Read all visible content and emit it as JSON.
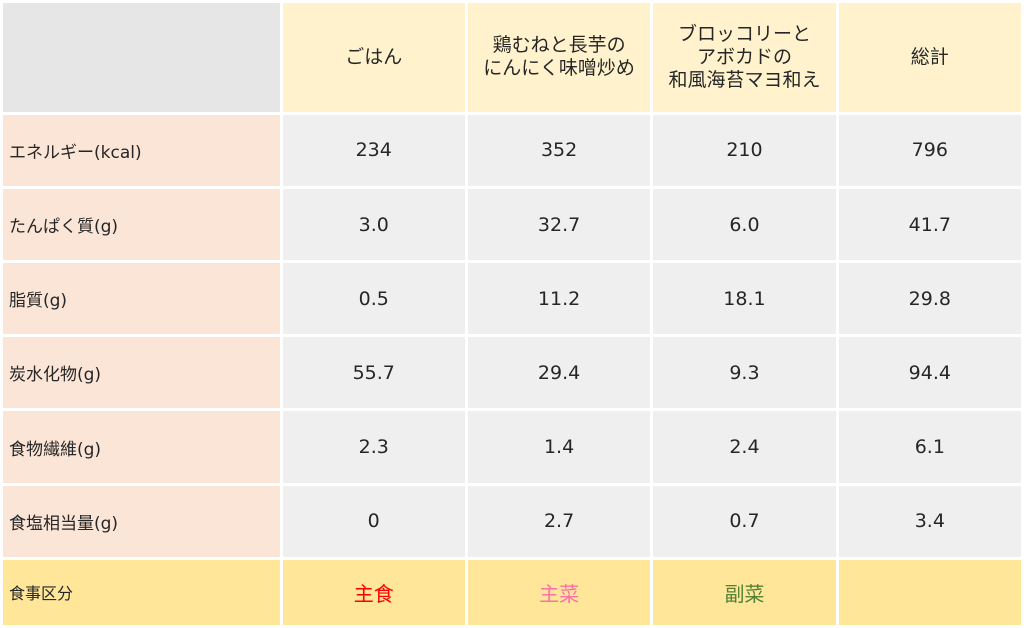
{
  "table": {
    "columns": [
      {
        "lines": [
          "ごはん"
        ]
      },
      {
        "lines": [
          "鶏むねと長芋の",
          "にんにく味噌炒め"
        ]
      },
      {
        "lines": [
          "ブロッコリーと",
          "アボカドの",
          "和風海苔マヨ和え"
        ]
      },
      {
        "lines": [
          "総計"
        ]
      }
    ],
    "rows": [
      {
        "label": "エネルギー(kcal)",
        "values": [
          "234",
          "352",
          "210",
          "796"
        ]
      },
      {
        "label": "たんぱく質(g)",
        "values": [
          "3.0",
          "32.7",
          "6.0",
          "41.7"
        ]
      },
      {
        "label": "脂質(g)",
        "values": [
          "0.5",
          "11.2",
          "18.1",
          "29.8"
        ]
      },
      {
        "label": "炭水化物(g)",
        "values": [
          "55.7",
          "29.4",
          "9.3",
          "94.4"
        ]
      },
      {
        "label": "食物繊維(g)",
        "values": [
          "2.3",
          "1.4",
          "2.4",
          "6.1"
        ]
      },
      {
        "label": "食塩相当量(g)",
        "values": [
          "0",
          "2.7",
          "0.7",
          "3.4"
        ]
      }
    ],
    "category": {
      "label": "食事区分",
      "values": [
        {
          "text": "主食",
          "color": "#ff0000"
        },
        {
          "text": "主菜",
          "color": "#ff6fa8"
        },
        {
          "text": "副菜",
          "color": "#548235"
        },
        {
          "text": "",
          "color": "#262626"
        }
      ]
    }
  },
  "colors": {
    "header_bg": "#fff2cd",
    "row_label_bg": "#fbe5d7",
    "cell_bg": "#efefef",
    "category_bg": "#ffe699",
    "corner_bg": "#e6e6e6"
  }
}
